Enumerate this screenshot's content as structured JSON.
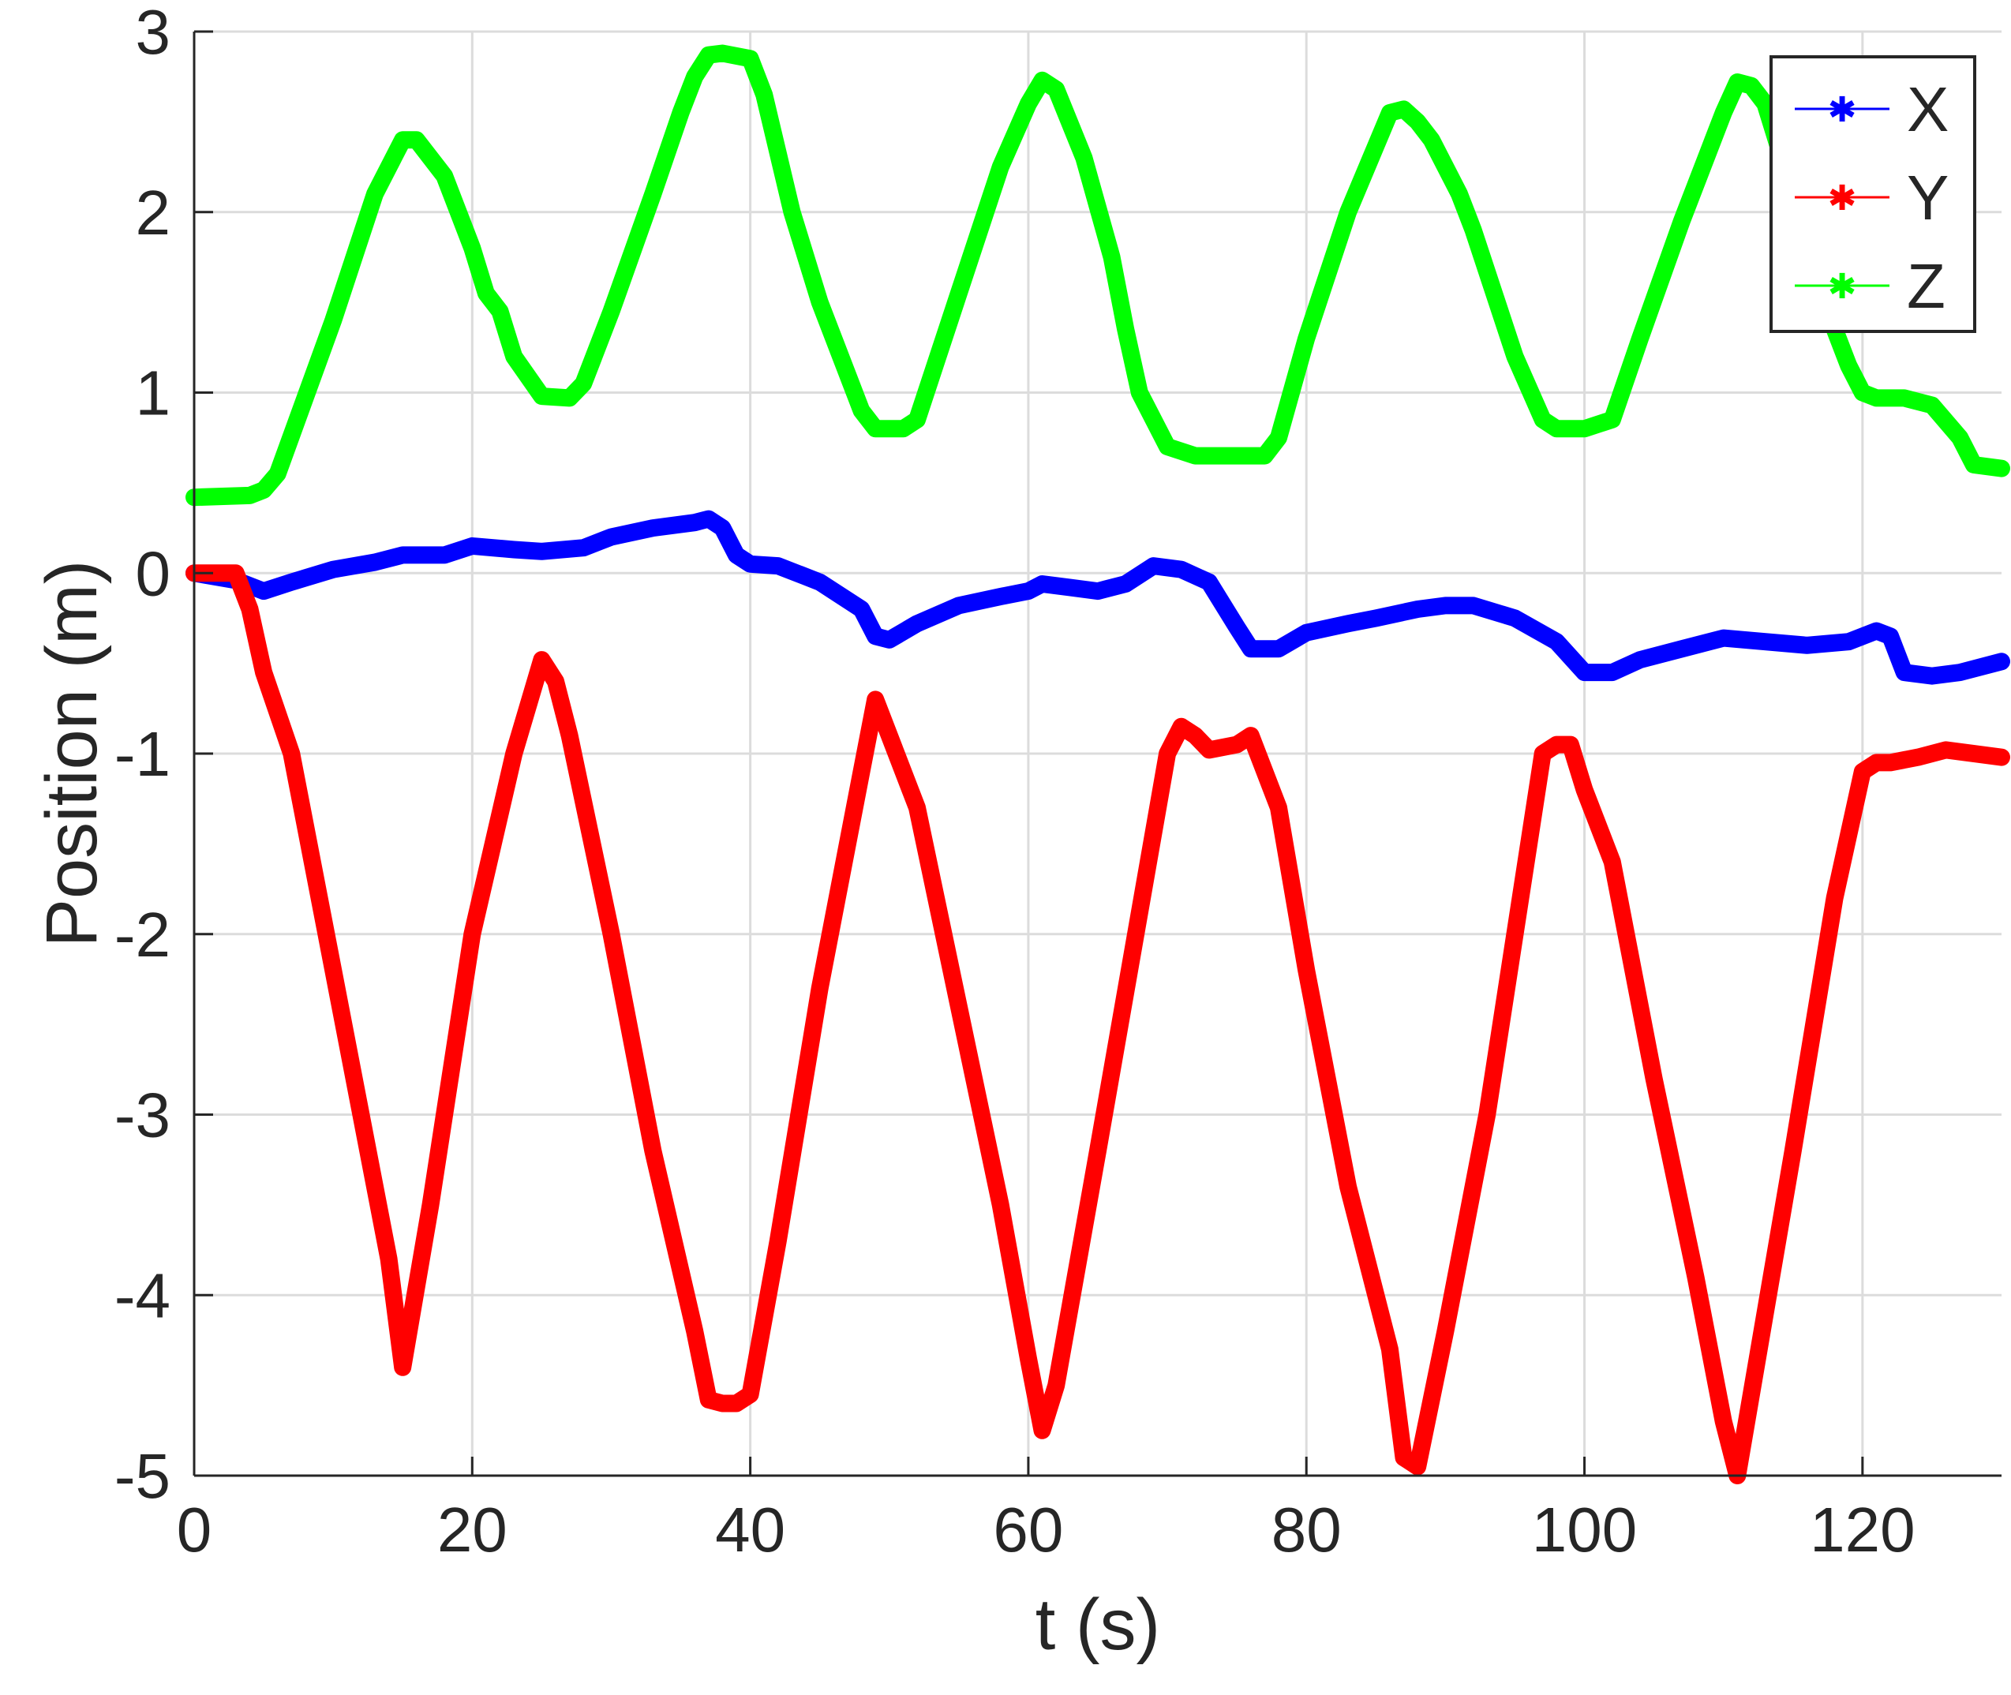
{
  "chart_data": {
    "type": "line",
    "xlabel": "t (s)",
    "ylabel": "Position (m)",
    "xlim": [
      0,
      130
    ],
    "ylim": [
      -5,
      3
    ],
    "xticks": [
      0,
      20,
      40,
      60,
      80,
      100,
      120
    ],
    "yticks": [
      -5,
      -4,
      -3,
      -2,
      -1,
      0,
      1,
      2,
      3
    ],
    "grid": true,
    "legend_position": "top-right",
    "series": [
      {
        "name": "X",
        "color": "#0000ff",
        "x": [
          0,
          3,
          5,
          7,
          10,
          13,
          15,
          18,
          20,
          23,
          25,
          28,
          30,
          33,
          36,
          37,
          38,
          39,
          40,
          42,
          45,
          48,
          49,
          50,
          52,
          55,
          58,
          60,
          61,
          63,
          65,
          67,
          69,
          71,
          73,
          75,
          76,
          78,
          80,
          83,
          85,
          88,
          90,
          92,
          95,
          98,
          100,
          102,
          104,
          107,
          110,
          113,
          116,
          119,
          121,
          122,
          123,
          125,
          127,
          130
        ],
        "y": [
          0,
          -0.04,
          -0.1,
          -0.05,
          0.02,
          0.06,
          0.1,
          0.1,
          0.15,
          0.13,
          0.12,
          0.14,
          0.2,
          0.25,
          0.28,
          0.3,
          0.25,
          0.1,
          0.05,
          0.04,
          -0.05,
          -0.2,
          -0.35,
          -0.37,
          -0.28,
          -0.18,
          -0.13,
          -0.1,
          -0.06,
          -0.08,
          -0.1,
          -0.06,
          0.04,
          0.02,
          -0.05,
          -0.3,
          -0.42,
          -0.42,
          -0.33,
          -0.28,
          -0.25,
          -0.2,
          -0.18,
          -0.18,
          -0.25,
          -0.38,
          -0.55,
          -0.55,
          -0.48,
          -0.42,
          -0.36,
          -0.38,
          -0.4,
          -0.38,
          -0.32,
          -0.35,
          -0.55,
          -0.57,
          -0.55,
          -0.49
        ]
      },
      {
        "name": "Y",
        "color": "#ff0000",
        "x": [
          0,
          2,
          3,
          4,
          5,
          7,
          10,
          14,
          15,
          17,
          20,
          23,
          25,
          26,
          27,
          30,
          33,
          36,
          37,
          38,
          39,
          40,
          42,
          45,
          48,
          49,
          50,
          52,
          55,
          58,
          60,
          61,
          62,
          65,
          70,
          71,
          72,
          73,
          75,
          76,
          78,
          80,
          83,
          86,
          87,
          88,
          90,
          93,
          96,
          97,
          98,
          99,
          100,
          102,
          105,
          108,
          110,
          111,
          112,
          115,
          118,
          120,
          121,
          122,
          124,
          126,
          128,
          130
        ],
        "y": [
          0,
          0,
          0,
          -0.2,
          -0.55,
          -1,
          -2.2,
          -3.8,
          -4.4,
          -3.5,
          -2.0,
          -1.0,
          -0.48,
          -0.6,
          -0.9,
          -2.0,
          -3.2,
          -4.2,
          -4.58,
          -4.6,
          -4.6,
          -4.55,
          -3.7,
          -2.3,
          -1.1,
          -0.7,
          -0.9,
          -1.3,
          -2.4,
          -3.5,
          -4.35,
          -4.75,
          -4.5,
          -3.2,
          -1.0,
          -0.85,
          -0.9,
          -0.98,
          -0.95,
          -0.9,
          -1.3,
          -2.2,
          -3.4,
          -4.3,
          -4.9,
          -4.95,
          -4.2,
          -3.0,
          -1.5,
          -1.0,
          -0.95,
          -0.95,
          -1.2,
          -1.6,
          -2.8,
          -3.9,
          -4.7,
          -5.0,
          -4.55,
          -3.2,
          -1.8,
          -1.1,
          -1.05,
          -1.05,
          -1.02,
          -0.98,
          -1.0,
          -1.02
        ]
      },
      {
        "name": "Z",
        "color": "#00ff00",
        "x": [
          0,
          4,
          5,
          6,
          10,
          13,
          15,
          16,
          18,
          20,
          21,
          22,
          23,
          25,
          27,
          28,
          30,
          33,
          35,
          36,
          37,
          38,
          40,
          41,
          43,
          45,
          48,
          49,
          50,
          51,
          52,
          55,
          58,
          60,
          61,
          62,
          64,
          66,
          67,
          68,
          70,
          72,
          74,
          76,
          77,
          78,
          80,
          83,
          86,
          87,
          88,
          89,
          91,
          92,
          95,
          97,
          98,
          100,
          102,
          104,
          107,
          110,
          111,
          112,
          113,
          115,
          116,
          118,
          119,
          120,
          121,
          123,
          125,
          127,
          128,
          130
        ],
        "y": [
          0.42,
          0.43,
          0.46,
          0.55,
          1.4,
          2.1,
          2.4,
          2.4,
          2.2,
          1.8,
          1.55,
          1.45,
          1.2,
          0.98,
          0.97,
          1.05,
          1.45,
          2.1,
          2.55,
          2.75,
          2.87,
          2.88,
          2.85,
          2.65,
          2.0,
          1.5,
          0.9,
          0.8,
          0.8,
          0.8,
          0.85,
          1.55,
          2.25,
          2.6,
          2.73,
          2.68,
          2.3,
          1.75,
          1.35,
          1.0,
          0.7,
          0.65,
          0.65,
          0.65,
          0.65,
          0.75,
          1.3,
          2.0,
          2.55,
          2.57,
          2.5,
          2.4,
          2.1,
          1.9,
          1.2,
          0.85,
          0.8,
          0.8,
          0.85,
          1.3,
          1.95,
          2.55,
          2.72,
          2.7,
          2.6,
          2.1,
          1.7,
          1.35,
          1.15,
          1.0,
          0.97,
          0.97,
          0.93,
          0.75,
          0.6,
          0.58
        ]
      }
    ]
  }
}
